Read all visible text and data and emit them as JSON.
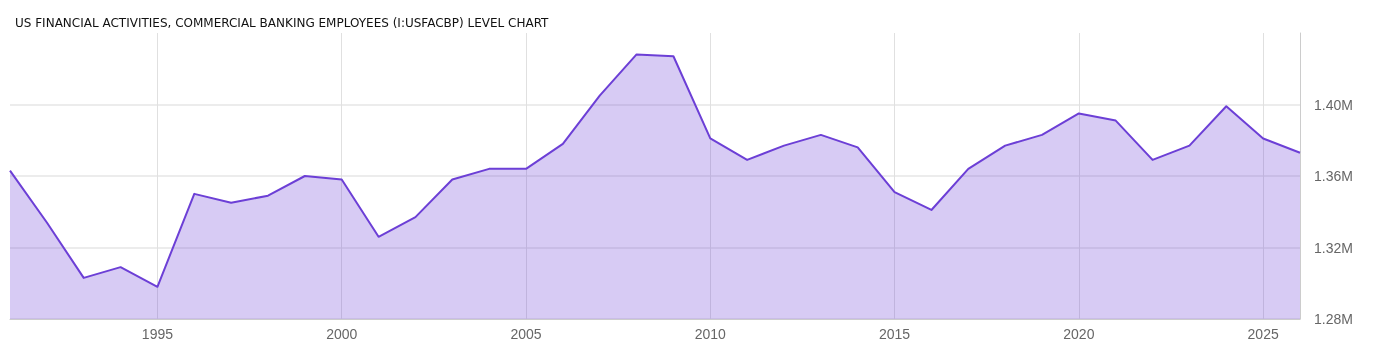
{
  "chart_data": {
    "type": "area",
    "title": "US FINANCIAL ACTIVITIES, COMMERCIAL BANKING EMPLOYEES (I:USFACBP) LEVEL CHART",
    "x": [
      1991,
      1992,
      1993,
      1994,
      1995,
      1996,
      1997,
      1998,
      1999,
      2000,
      2001,
      2002,
      2003,
      2004,
      2005,
      2006,
      2007,
      2008,
      2009,
      2010,
      2011,
      2012,
      2013,
      2014,
      2015,
      2016,
      2017,
      2018,
      2019,
      2020,
      2021,
      2022,
      2023,
      2024,
      2025,
      2026
    ],
    "series": [
      {
        "color": "#6c3fd6",
        "values": [
          1.363,
          1.334,
          1.303,
          1.309,
          1.298,
          1.35,
          1.345,
          1.349,
          1.36,
          1.358,
          1.326,
          1.337,
          1.358,
          1.364,
          1.364,
          1.378,
          1.405,
          1.428,
          1.427,
          1.381,
          1.369,
          1.377,
          1.383,
          1.376,
          1.351,
          1.341,
          1.364,
          1.377,
          1.383,
          1.395,
          1.391,
          1.369,
          1.377,
          1.399,
          1.381,
          1.373
        ]
      }
    ],
    "xlim": [
      1991,
      2026
    ],
    "xticks": [
      1995,
      2000,
      2005,
      2010,
      2015,
      2020,
      2025
    ],
    "ylim": [
      1.28,
      1.44
    ],
    "yticks": [
      {
        "value": 1.28,
        "label": "1.28M"
      },
      {
        "value": 1.32,
        "label": "1.32M"
      },
      {
        "value": 1.36,
        "label": "1.36M"
      },
      {
        "value": 1.4,
        "label": "1.40M"
      }
    ],
    "grid": true,
    "marker": "none"
  }
}
